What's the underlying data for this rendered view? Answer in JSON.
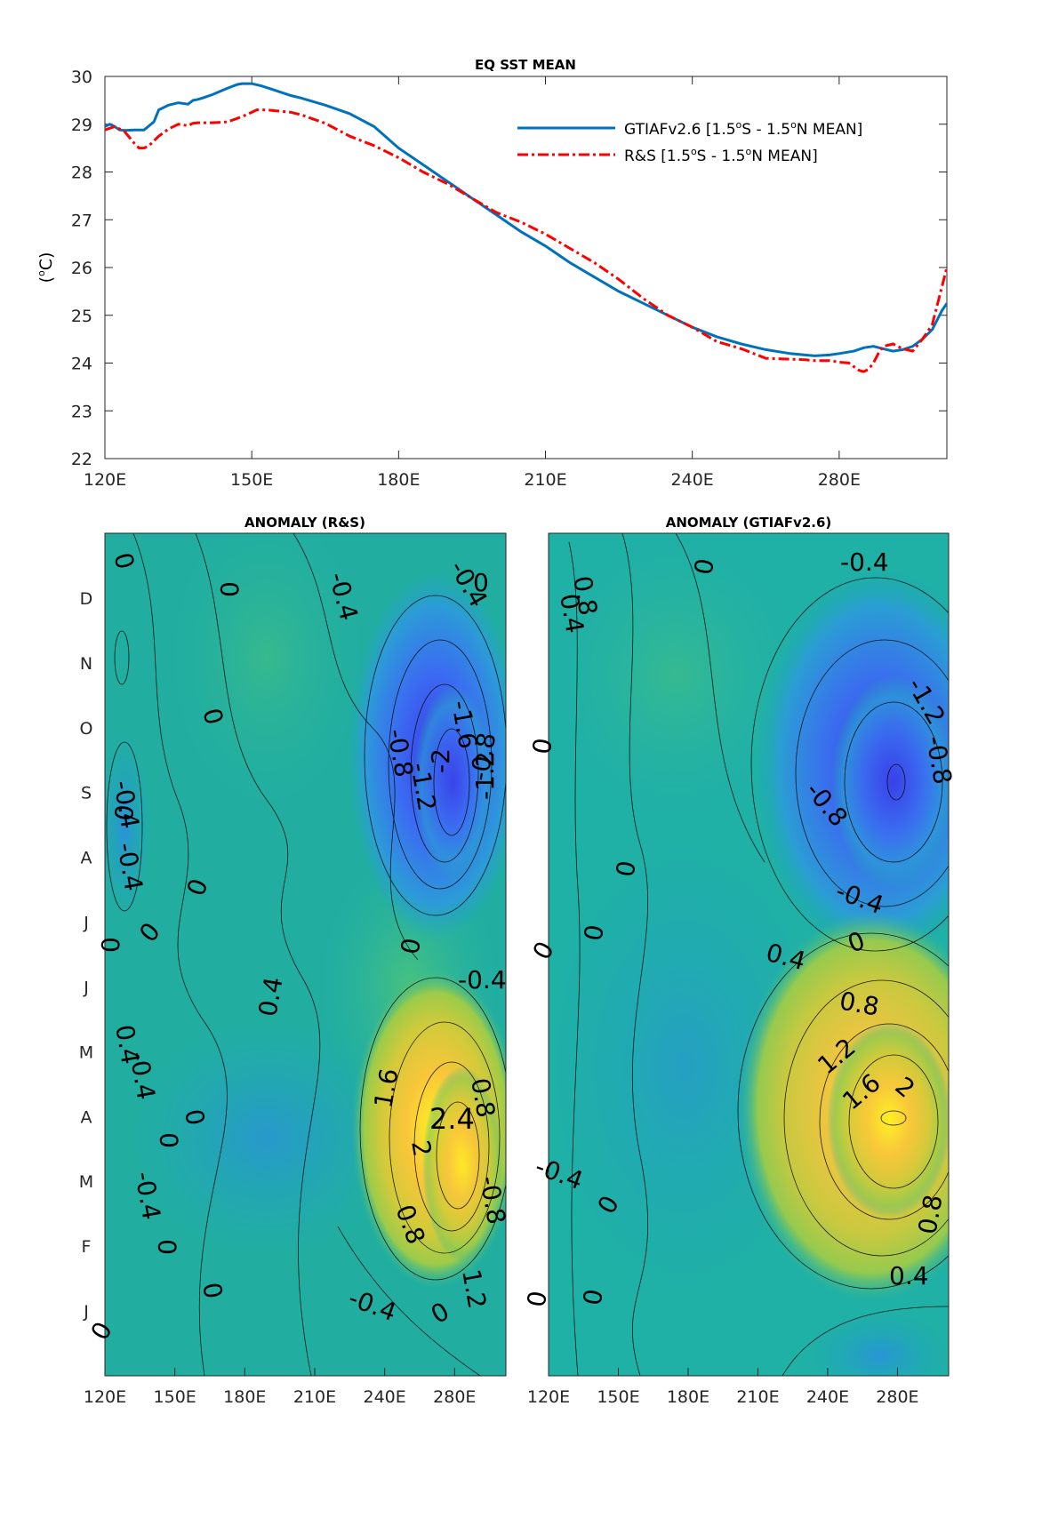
{
  "chart_data": [
    {
      "type": "line",
      "title": "EQ SST MEAN",
      "xlabel": "",
      "ylabel": "(oC)",
      "xlim": [
        120,
        292
      ],
      "ylim": [
        22,
        30
      ],
      "x_ticks": [
        "120E",
        "150E",
        "180E",
        "210E",
        "240E",
        "280E"
      ],
      "y_ticks": [
        "22",
        "23",
        "24",
        "25",
        "26",
        "27",
        "28",
        "29",
        "30"
      ],
      "legend_position": "top-right",
      "series": [
        {
          "name": "GTIAFv2.6 [1.5oS - 1.5oN MEAN]",
          "color": "#0072BD",
          "style": "solid",
          "x": [
            120,
            121,
            122,
            123,
            124,
            126,
            127,
            128,
            130,
            131,
            133,
            135,
            137,
            138,
            139,
            140,
            142,
            145,
            147,
            148,
            150,
            152,
            155,
            158,
            160,
            165,
            170,
            175,
            180,
            185,
            190,
            195,
            200,
            205,
            210,
            215,
            220,
            225,
            230,
            235,
            240,
            245,
            250,
            255,
            260,
            263,
            265,
            268,
            270,
            273,
            275,
            277,
            279,
            281,
            283,
            285,
            287,
            289,
            291,
            292
          ],
          "y": [
            28.95,
            29.0,
            28.95,
            28.88,
            28.87,
            28.88,
            28.88,
            28.88,
            29.05,
            29.3,
            29.4,
            29.45,
            29.42,
            29.5,
            29.52,
            29.55,
            29.62,
            29.75,
            29.83,
            29.85,
            29.85,
            29.8,
            29.7,
            29.6,
            29.55,
            29.4,
            29.22,
            28.95,
            28.5,
            28.15,
            27.8,
            27.45,
            27.1,
            26.75,
            26.45,
            26.1,
            25.8,
            25.5,
            25.25,
            25.0,
            24.75,
            24.55,
            24.4,
            24.28,
            24.2,
            24.17,
            24.15,
            24.17,
            24.2,
            24.25,
            24.32,
            24.35,
            24.3,
            24.25,
            24.28,
            24.35,
            24.5,
            24.7,
            25.1,
            25.25
          ]
        },
        {
          "name": "R&S [1.5oS - 1.5oN MEAN]",
          "color": "#FF0000",
          "style": "dash-dot",
          "x": [
            120,
            122,
            124,
            126,
            127,
            128,
            129,
            131,
            133,
            135,
            137,
            138,
            139,
            140,
            142,
            145,
            147,
            149,
            151,
            153,
            155,
            158,
            160,
            165,
            170,
            175,
            180,
            185,
            190,
            195,
            200,
            205,
            210,
            215,
            220,
            225,
            230,
            235,
            240,
            245,
            250,
            255,
            260,
            263,
            265,
            268,
            270,
            272,
            274,
            275,
            276,
            277,
            278,
            279,
            281,
            283,
            285,
            287,
            289,
            290,
            291,
            292
          ],
          "y": [
            28.88,
            28.95,
            28.85,
            28.6,
            28.5,
            28.5,
            28.55,
            28.75,
            28.9,
            29.0,
            28.97,
            29.02,
            29.03,
            29.03,
            29.03,
            29.05,
            29.12,
            29.2,
            29.3,
            29.3,
            29.28,
            29.25,
            29.2,
            29.02,
            28.75,
            28.55,
            28.3,
            28.0,
            27.75,
            27.45,
            27.15,
            26.95,
            26.7,
            26.4,
            26.1,
            25.75,
            25.35,
            25.0,
            24.75,
            24.45,
            24.3,
            24.1,
            24.08,
            24.07,
            24.05,
            24.05,
            24.02,
            24.0,
            23.85,
            23.82,
            23.87,
            24.0,
            24.2,
            24.35,
            24.4,
            24.3,
            24.25,
            24.5,
            24.8,
            25.2,
            25.6,
            26.0
          ]
        }
      ]
    },
    {
      "type": "heatmap",
      "title": "ANOMALY (R&S)",
      "x_ticks": [
        "120E",
        "150E",
        "180E",
        "210E",
        "240E",
        "280E"
      ],
      "y_ticks": [
        "J",
        "F",
        "M",
        "A",
        "M",
        "J",
        "J",
        "A",
        "S",
        "O",
        "N",
        "D"
      ],
      "contour_labels": [
        "0",
        "0",
        "0",
        "0",
        "0",
        "0",
        "0",
        "0",
        "0",
        "0",
        "0",
        "0",
        "0",
        "0",
        "0",
        "-0.4",
        "-0.4",
        "-0.4",
        "-0.4",
        "-0.4",
        "-0.4",
        "-0.4",
        "-0.4",
        "-0.8",
        "-0.8",
        "-0.8",
        "-1.2",
        "-1.2",
        "-1.6",
        "-2",
        "0.4",
        "0.4",
        "0.8",
        "0.8",
        "1.2",
        "1.6",
        "2",
        "2.4"
      ],
      "features": [
        {
          "kind": "warm",
          "lon": 268,
          "month": 3.8,
          "peak": 2.6
        },
        {
          "kind": "cold",
          "lon": 262,
          "month": 8.7,
          "peak": -2.2
        }
      ]
    },
    {
      "type": "heatmap",
      "title": "ANOMALY (GTIAFv2.6)",
      "x_ticks": [
        "120E",
        "150E",
        "180E",
        "210E",
        "240E",
        "280E"
      ],
      "contour_labels": [
        "0",
        "0",
        "0",
        "0",
        "0",
        "0",
        "0",
        "0",
        "0",
        "-0.4",
        "-0.4",
        "-0.4",
        "-0.8",
        "-0.8",
        "-1.2",
        "0.4",
        "0.4",
        "0.4",
        "0.8",
        "0.8",
        "0.8",
        "1.2",
        "1.6",
        "2"
      ],
      "features": [
        {
          "kind": "warm",
          "lon": 265,
          "month": 4.5,
          "peak": 2.2
        },
        {
          "kind": "cold",
          "lon": 262,
          "month": 9.5,
          "peak": -1.6
        }
      ]
    }
  ]
}
